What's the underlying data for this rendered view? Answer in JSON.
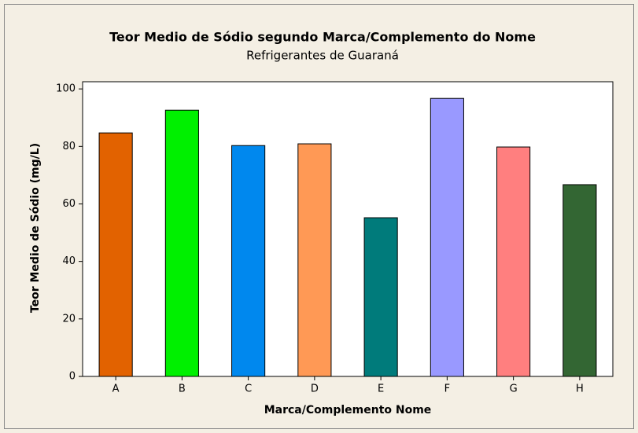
{
  "chart_data": {
    "type": "bar",
    "title": "Teor Medio de Sódio segundo Marca/Complemento do Nome",
    "subtitle": "Refrigerantes de Guaraná",
    "x_label": "Marca/Complemento Nome",
    "y_label": "Teor Medio de Sódio (mg/L)",
    "categories": [
      "A",
      "B",
      "C",
      "D",
      "E",
      "F",
      "G",
      "H"
    ],
    "values": [
      84.7,
      92.6,
      80.3,
      80.9,
      55.2,
      96.7,
      79.8,
      66.7
    ],
    "colors": [
      "#e26200",
      "#00f000",
      "#0088ee",
      "#ff9955",
      "#007b7b",
      "#9999ff",
      "#ff7f7f",
      "#336633"
    ],
    "ylim": [
      0,
      102.5
    ],
    "yticks": [
      0,
      20,
      40,
      60,
      80,
      100
    ],
    "grid": false
  }
}
